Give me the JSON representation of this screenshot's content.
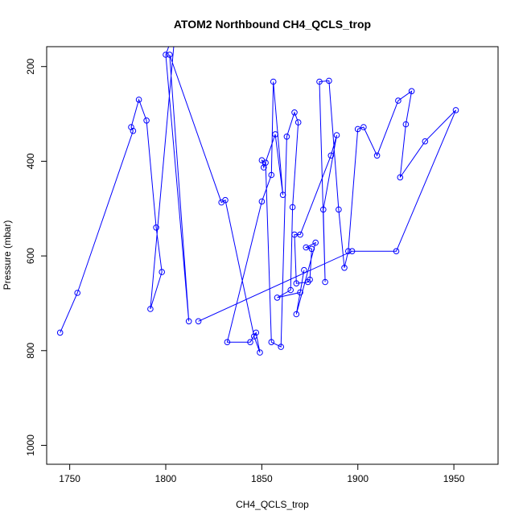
{
  "chart_data": {
    "type": "line",
    "title": "ATOM2 Northbound CH4_QCLS_trop",
    "xlabel": "CH4_QCLS_trop",
    "ylabel": "Pressure (mbar)",
    "xlim": [
      1738,
      1973
    ],
    "ylim": [
      1040,
      158
    ],
    "y_reversed": true,
    "x_ticks": [
      1750,
      1800,
      1850,
      1900,
      1950
    ],
    "y_ticks": [
      200,
      400,
      600,
      800,
      1000
    ],
    "grid": false,
    "legend": "none",
    "marker": "open-circle",
    "color": "#0000ff",
    "series": [
      {
        "x": [
          1745,
          1754,
          1783,
          1782,
          1786,
          1790,
          1795,
          1798,
          1792,
          1805,
          1800,
          1812,
          1802,
          1829,
          1831,
          1846,
          1849,
          1847,
          1844,
          1832,
          1850,
          1855,
          1856,
          1861,
          1857,
          1851,
          1850,
          1852,
          1855,
          1860,
          1863,
          1867,
          1869,
          1866,
          1865,
          1858,
          1870,
          1872,
          1868,
          1878,
          1873,
          1876,
          1875,
          1874,
          1868,
          1867,
          1870,
          1886,
          1889,
          1882,
          1883,
          1880,
          1885,
          1890,
          1893,
          1895,
          1900,
          1903,
          1910,
          1921,
          1928,
          1925,
          1922,
          1935,
          1951,
          1920,
          1897,
          1817
        ],
        "y": [
          762,
          678,
          336,
          328,
          270,
          314,
          540,
          634,
          712,
          120,
          175,
          738,
          175,
          487,
          482,
          770,
          804,
          762,
          782,
          782,
          485,
          429,
          232,
          471,
          343,
          413,
          398,
          403,
          782,
          792,
          348,
          297,
          318,
          497,
          672,
          688,
          677,
          630,
          723,
          572,
          582,
          585,
          650,
          655,
          658,
          555,
          555,
          388,
          345,
          502,
          655,
          232,
          230,
          502,
          625,
          590,
          332,
          328,
          388,
          272,
          252,
          322,
          434,
          358,
          292,
          590,
          590,
          738
        ]
      }
    ]
  }
}
